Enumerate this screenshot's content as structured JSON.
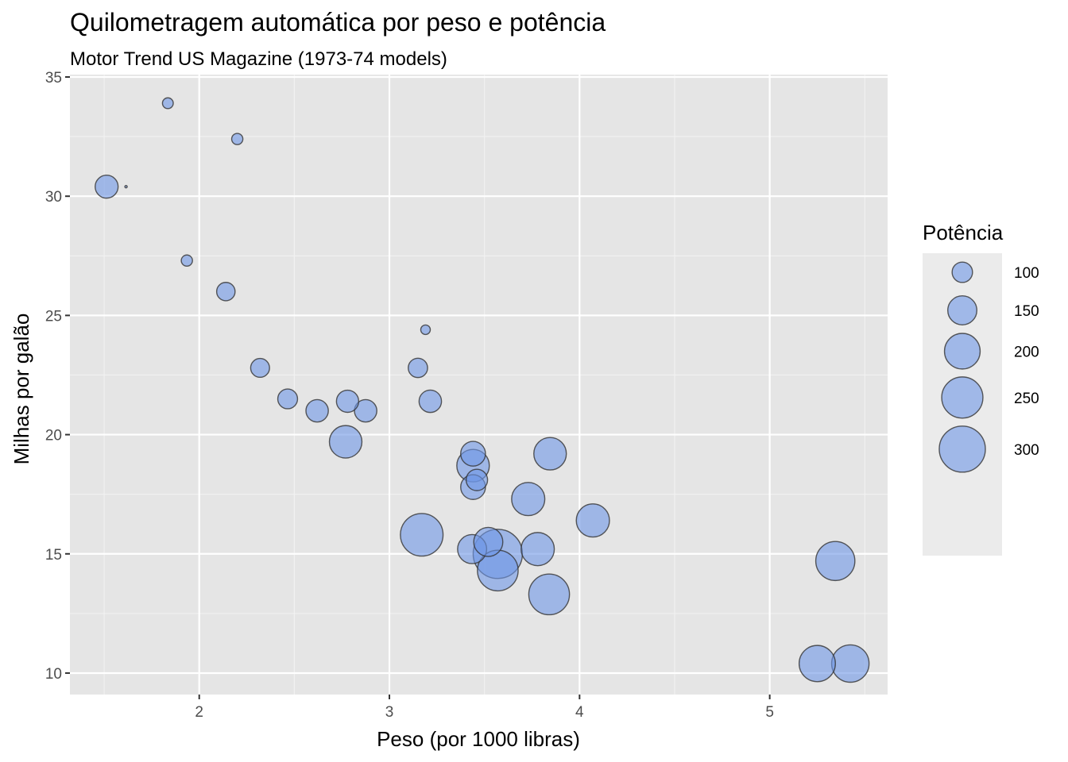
{
  "chart_data": {
    "type": "scatter",
    "title": "Quilometragem automática por peso e potência",
    "subtitle": "Motor Trend US Magazine (1973-74 models)",
    "xlabel": "Peso (por 1000 libras)",
    "ylabel": "Milhas por galão",
    "xlim": [
      1.32,
      5.62
    ],
    "ylim": [
      9.1,
      35.1
    ],
    "x_ticks": [
      2,
      3,
      4,
      5
    ],
    "y_ticks": [
      10,
      15,
      20,
      25,
      30,
      35
    ],
    "grid": true,
    "point_fill": "#6e96e6",
    "point_stroke": "#333333",
    "panel_background": "#e5e5e5",
    "legend": {
      "title": "Potência",
      "position": "right",
      "breaks": [
        100,
        150,
        200,
        250,
        300
      ],
      "labels": [
        "100",
        "150",
        "200",
        "250",
        "300"
      ]
    },
    "size_range_hp": [
      52,
      335
    ],
    "points": [
      {
        "x": 1.835,
        "y": 33.9,
        "size": 65
      },
      {
        "x": 2.2,
        "y": 32.4,
        "size": 66
      },
      {
        "x": 1.513,
        "y": 30.4,
        "size": 113
      },
      {
        "x": 1.615,
        "y": 30.4,
        "size": 52
      },
      {
        "x": 1.935,
        "y": 27.3,
        "size": 66
      },
      {
        "x": 2.14,
        "y": 26.0,
        "size": 91
      },
      {
        "x": 3.19,
        "y": 24.4,
        "size": 62
      },
      {
        "x": 2.32,
        "y": 22.8,
        "size": 93
      },
      {
        "x": 3.15,
        "y": 22.8,
        "size": 95
      },
      {
        "x": 2.465,
        "y": 21.5,
        "size": 97
      },
      {
        "x": 2.62,
        "y": 21.0,
        "size": 110
      },
      {
        "x": 2.875,
        "y": 21.0,
        "size": 110
      },
      {
        "x": 2.78,
        "y": 21.4,
        "size": 109
      },
      {
        "x": 3.215,
        "y": 21.4,
        "size": 110
      },
      {
        "x": 2.77,
        "y": 19.7,
        "size": 175
      },
      {
        "x": 3.44,
        "y": 19.2,
        "size": 123
      },
      {
        "x": 3.845,
        "y": 19.2,
        "size": 175
      },
      {
        "x": 3.44,
        "y": 18.7,
        "size": 175
      },
      {
        "x": 3.46,
        "y": 18.1,
        "size": 105
      },
      {
        "x": 3.44,
        "y": 17.8,
        "size": 123
      },
      {
        "x": 3.73,
        "y": 17.3,
        "size": 180
      },
      {
        "x": 4.07,
        "y": 16.4,
        "size": 180
      },
      {
        "x": 3.17,
        "y": 15.8,
        "size": 264
      },
      {
        "x": 3.435,
        "y": 15.2,
        "size": 150
      },
      {
        "x": 3.78,
        "y": 15.2,
        "size": 180
      },
      {
        "x": 3.52,
        "y": 15.5,
        "size": 150
      },
      {
        "x": 3.57,
        "y": 15.0,
        "size": 335
      },
      {
        "x": 5.345,
        "y": 14.7,
        "size": 230
      },
      {
        "x": 3.57,
        "y": 14.3,
        "size": 245
      },
      {
        "x": 3.84,
        "y": 13.3,
        "size": 245
      },
      {
        "x": 5.25,
        "y": 10.4,
        "size": 205
      },
      {
        "x": 5.424,
        "y": 10.4,
        "size": 215
      }
    ]
  }
}
